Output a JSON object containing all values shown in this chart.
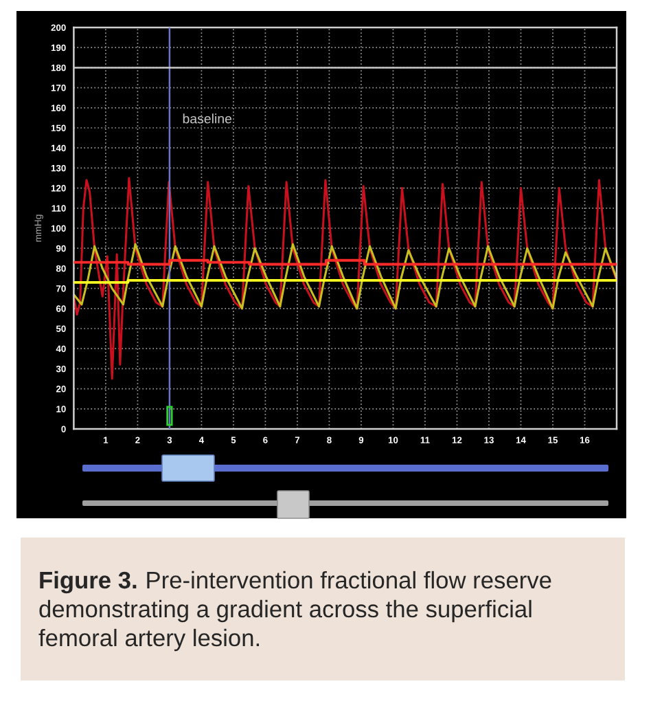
{
  "chart_data": {
    "type": "line",
    "ylabel": "mmHg",
    "xlim": [
      0,
      17
    ],
    "ylim": [
      0,
      200
    ],
    "xticks": [
      1,
      2,
      3,
      4,
      5,
      6,
      7,
      8,
      9,
      10,
      11,
      12,
      13,
      14,
      15,
      16
    ],
    "yticks": [
      0,
      10,
      20,
      30,
      40,
      50,
      60,
      70,
      80,
      90,
      100,
      110,
      120,
      130,
      140,
      150,
      160,
      170,
      180,
      190,
      200
    ],
    "grid": true,
    "legend": false,
    "ref_lines": [
      {
        "axis": "x",
        "value": 3,
        "label": "baseline",
        "color": "#6c74c8"
      },
      {
        "axis": "y",
        "value": 180,
        "color": "#c8c8c8"
      }
    ],
    "series": [
      {
        "color": "#c8101e",
        "x": [
          0,
          0.1,
          0.2,
          0.3,
          0.4,
          0.5,
          0.65,
          0.9,
          1.05,
          1.2,
          1.35,
          1.45,
          1.53,
          1.73,
          1.93,
          2.28,
          2.58,
          2.78,
          2.98,
          3.18,
          3.53,
          3.83,
          4.0,
          4.2,
          4.4,
          4.75,
          5.05,
          5.27,
          5.47,
          5.67,
          6.02,
          6.32,
          6.46,
          6.66,
          6.86,
          7.21,
          7.51,
          7.68,
          7.88,
          8.08,
          8.43,
          8.73,
          8.87,
          9.07,
          9.27,
          9.62,
          9.92,
          10.08,
          10.28,
          10.48,
          10.83,
          11.13,
          11.35,
          11.55,
          11.75,
          12.1,
          12.4,
          12.57,
          12.77,
          12.97,
          13.32,
          13.62,
          13.8,
          14.0,
          14.2,
          14.55,
          14.85,
          15.0,
          15.2,
          15.4,
          15.75,
          16.05,
          16.25,
          16.45,
          16.65,
          17.0
        ],
        "values": [
          66,
          57,
          63,
          110,
          124,
          118,
          90,
          66,
          86,
          25,
          87,
          32,
          62,
          125,
          90,
          72,
          63,
          61,
          123,
          90,
          72,
          63,
          61,
          123,
          90,
          72,
          63,
          60,
          121,
          90,
          72,
          63,
          61,
          123,
          90,
          72,
          63,
          61,
          124,
          90,
          72,
          63,
          60,
          121,
          90,
          72,
          63,
          60,
          120,
          90,
          72,
          63,
          61,
          122,
          90,
          72,
          63,
          61,
          123,
          90,
          72,
          63,
          61,
          120,
          90,
          72,
          63,
          60,
          120,
          90,
          72,
          63,
          61,
          124,
          90,
          74
        ]
      },
      {
        "color": "#c8c020",
        "x": [
          0,
          0.25,
          0.45,
          0.65,
          0.9,
          1.2,
          1.55,
          1.7,
          1.93,
          2.28,
          2.78,
          2.95,
          3.18,
          3.53,
          4.0,
          4.17,
          4.4,
          4.75,
          5.27,
          5.44,
          5.67,
          6.02,
          6.46,
          6.63,
          6.86,
          7.21,
          7.68,
          7.85,
          8.08,
          8.43,
          8.87,
          9.04,
          9.27,
          9.62,
          10.08,
          10.25,
          10.48,
          10.83,
          11.35,
          11.52,
          11.75,
          12.1,
          12.57,
          12.74,
          12.97,
          13.32,
          13.8,
          13.97,
          14.2,
          14.55,
          15.0,
          15.17,
          15.4,
          15.75,
          16.25,
          16.42,
          16.65,
          17.0
        ],
        "values": [
          67,
          62,
          75,
          91,
          80,
          70,
          62,
          75,
          92,
          76,
          61,
          75,
          91,
          76,
          61,
          75,
          91,
          76,
          60,
          75,
          90,
          76,
          61,
          75,
          92,
          76,
          61,
          75,
          91,
          76,
          60,
          75,
          91,
          76,
          60,
          75,
          89,
          76,
          61,
          75,
          90,
          76,
          61,
          75,
          91,
          76,
          61,
          75,
          90,
          76,
          60,
          75,
          88,
          76,
          61,
          75,
          90,
          75
        ]
      },
      {
        "type": "step",
        "color": "#ff2a2a",
        "x": [
          0,
          1.7,
          3.0,
          4.2,
          5.5,
          7.9,
          9.1,
          17
        ],
        "values": [
          83,
          82,
          84,
          83,
          82,
          84,
          82,
          82
        ]
      },
      {
        "type": "step",
        "color": "#ffff20",
        "x": [
          0,
          1.7,
          17
        ],
        "values": [
          73,
          74,
          74
        ]
      }
    ],
    "annotations": [
      "Figure 3.",
      "Pre-intervention fractional flow reserve demonstrating a gradient across the superficial femoral artery lesion."
    ]
  }
}
